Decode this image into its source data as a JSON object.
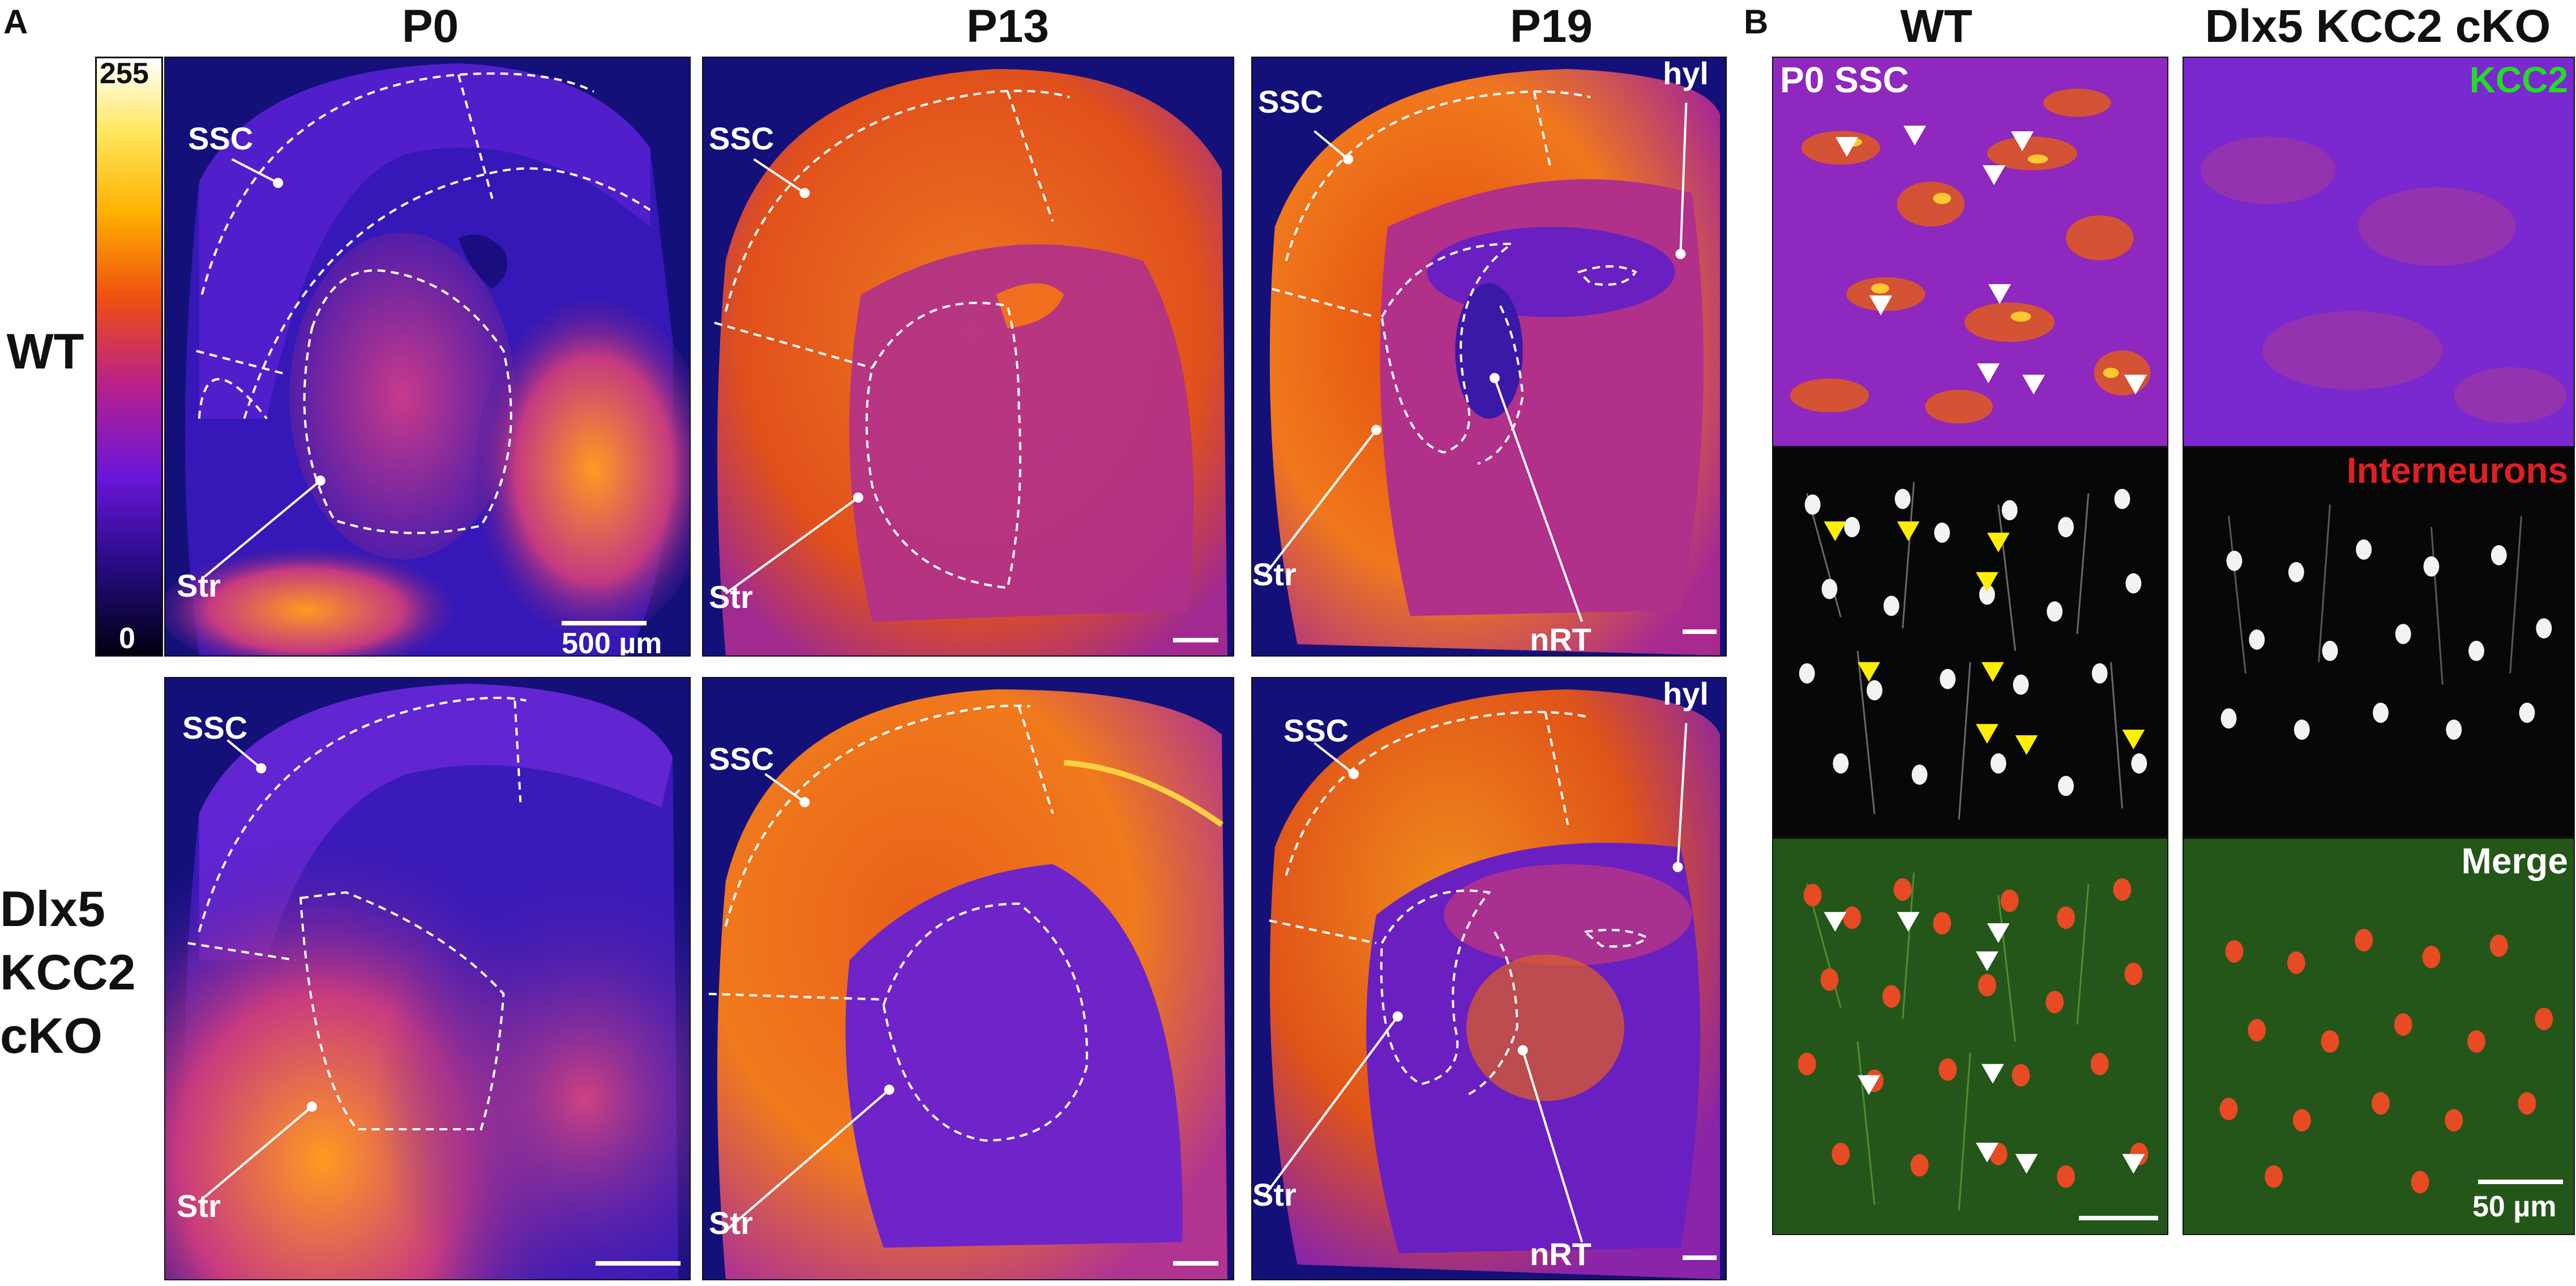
{
  "panel_a": {
    "letter": "A",
    "columns": [
      "P0",
      "P13",
      "P19"
    ],
    "rows": [
      [
        "WT"
      ],
      [
        "Dlx5",
        "KCC2",
        "cKO"
      ]
    ],
    "colorbar": {
      "max": "255",
      "min": "0",
      "palette": [
        "#000010",
        "#2a0a8a",
        "#6a14d8",
        "#b41a9c",
        "#e8401c",
        "#ff8a00",
        "#ffd02a",
        "#ffffff"
      ]
    },
    "regions": {
      "ssc": "SSC",
      "str": "Str",
      "nrt": "nRT",
      "hyl": "hyl"
    },
    "scale_label": "500 µm"
  },
  "panel_b": {
    "letter": "B",
    "columns": [
      "WT",
      "Dlx5 KCC2 cKO"
    ],
    "region_label": "P0 SSC",
    "channels": [
      "KCC2",
      "Interneurons",
      "Merge"
    ],
    "channel_colors": {
      "kcc2": "#22dd22",
      "interneurons": "#e02020",
      "merge": "#ffffff"
    },
    "scale_label": "50 µm"
  },
  "colors": {
    "background": "#ffffff",
    "tissue_bg": "#17117a",
    "arrow_white": "#ffffff",
    "arrow_yellow": "#ffee00"
  }
}
